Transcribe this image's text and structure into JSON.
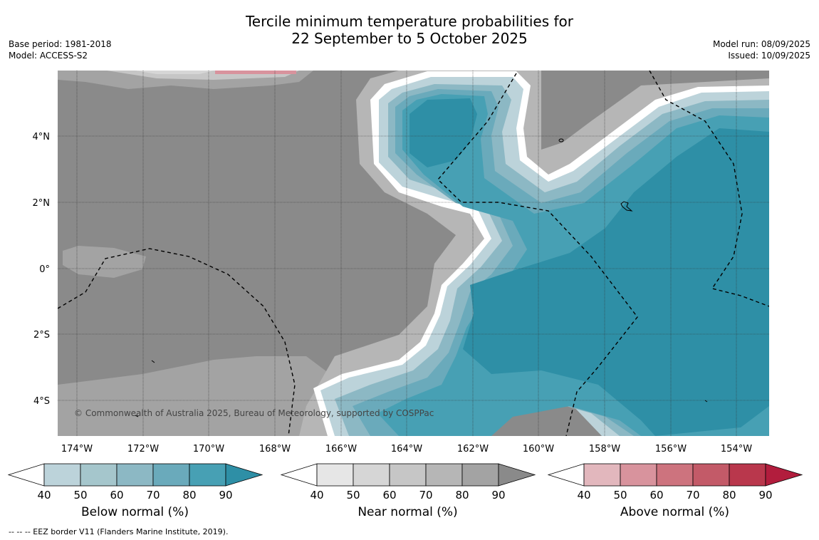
{
  "title_line1": "Tercile minimum temperature probabilities for",
  "title_line2": "22 September to 5 October 2025",
  "base_period": "Base period: 1981-2018",
  "model": "Model: ACCESS-S2",
  "model_run": "Model run: 08/09/2025",
  "issued": "Issued: 10/09/2025",
  "copyright": "© Commonwealth of Australia 2025, Bureau of Meteorology, supported by COSPPac",
  "footer": "--  --  -- EEZ border V11 (Flanders Marine Institute, 2019).",
  "lat_labels": [
    "4°N",
    "2°N",
    "0°",
    "2°S",
    "4°S"
  ],
  "lon_labels": [
    "174°W",
    "172°W",
    "170°W",
    "168°W",
    "166°W",
    "164°W",
    "162°W",
    "160°W",
    "158°W",
    "156°W",
    "154°W"
  ],
  "colorbars": [
    {
      "label": "Below normal (%)",
      "ticks": [
        "40",
        "50",
        "60",
        "70",
        "80",
        "90"
      ],
      "colors": [
        "#bcd3da",
        "#a5c6cc",
        "#8cb8c4",
        "#6aaabb",
        "#47a0b4",
        "#2e8fa6"
      ]
    },
    {
      "label": "Near normal (%)",
      "ticks": [
        "40",
        "50",
        "60",
        "70",
        "80",
        "90"
      ],
      "colors": [
        "#e6e6e6",
        "#d6d6d6",
        "#c6c6c6",
        "#b6b6b6",
        "#a3a3a3",
        "#8a8a8a"
      ]
    },
    {
      "label": "Above normal (%)",
      "ticks": [
        "40",
        "50",
        "60",
        "70",
        "80",
        "90"
      ],
      "colors": [
        "#e2b7bd",
        "#d8939d",
        "#cd737e",
        "#c35a68",
        "#b9374c",
        "#b21d3d"
      ]
    }
  ]
}
